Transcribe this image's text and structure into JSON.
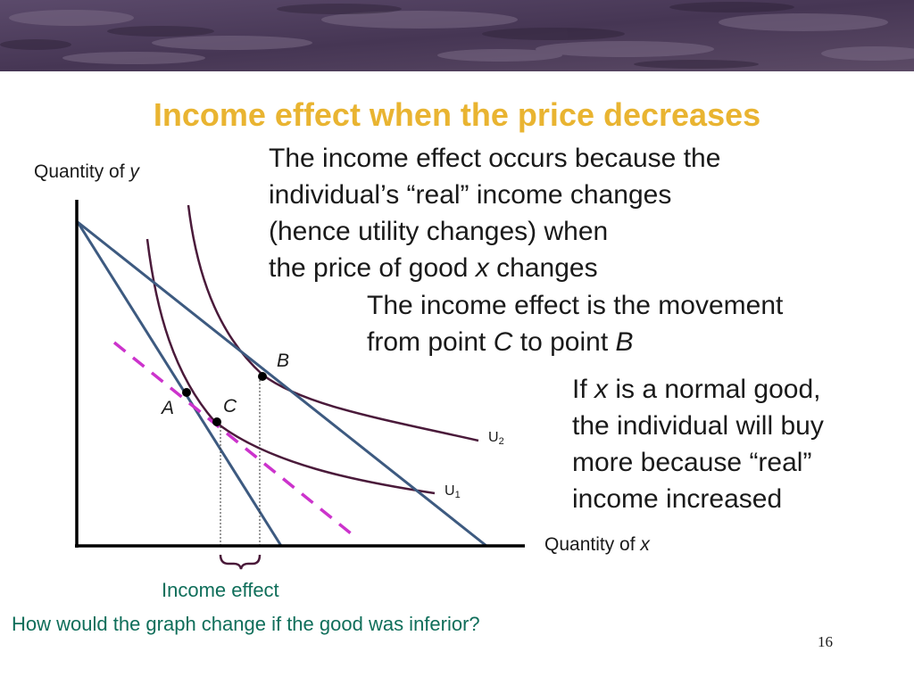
{
  "title": "Income effect when the price decreases",
  "paragraphs": {
    "p1": [
      {
        "t": "The income effect occurs because the"
      },
      {
        "t": "individual’s “real” income changes"
      },
      {
        "t": "(hence utility changes) when"
      },
      {
        "t": "the price of good ",
        "i": "x",
        "t2": " changes"
      }
    ],
    "p2": [
      {
        "t": "The income effect is the movement"
      },
      {
        "t": "from point ",
        "i": "C",
        "t2": " to point ",
        "i2": "B"
      }
    ],
    "p3": [
      {
        "t": "If ",
        "i": "x",
        "t2": " is a normal good,"
      },
      {
        "t": "the individual will buy"
      },
      {
        "t": "more because “real”"
      },
      {
        "t": "income increased"
      }
    ]
  },
  "axis": {
    "y_label_prefix": "Quantity of ",
    "y_label_var": "y",
    "x_label_prefix": "Quantity of ",
    "x_label_var": "x"
  },
  "points": {
    "A": "A",
    "B": "B",
    "C": "C"
  },
  "curves": {
    "u1": {
      "letter": "U",
      "sub": "1"
    },
    "u2": {
      "letter": "U",
      "sub": "2"
    }
  },
  "income_effect_label": "Income effect",
  "question": "How would the graph change if the good was inferior?",
  "page_number": "16",
  "colors": {
    "title": "#e9b431",
    "budget_lines": "#3d5a80",
    "indifference_curves": "#4a1a3a",
    "shifted_budget_line": "#cc33cc",
    "footer_text": "#0f6e5a",
    "banner": "#4e3f5c"
  }
}
